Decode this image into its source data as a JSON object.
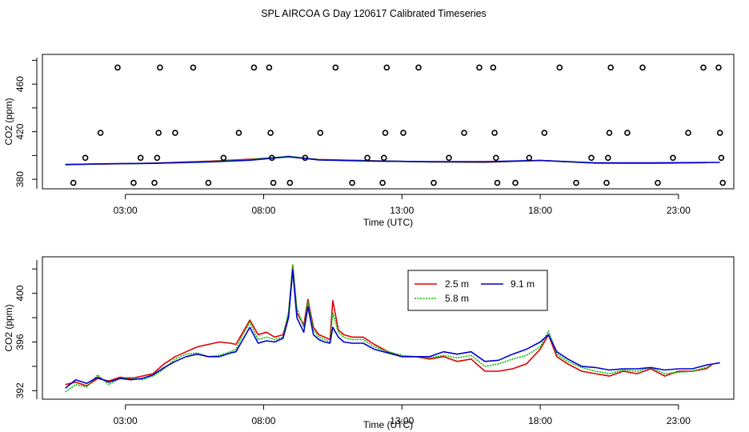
{
  "figure_title": "SPL AIRCOA G  Day 120617  Calibrated Timeseries",
  "chart_data": [
    {
      "type": "scatter",
      "xlabel": "Time (UTC)",
      "ylabel": "CO2 (ppm)",
      "xlim": [
        0.0,
        25.0
      ],
      "ylim": [
        372,
        485
      ],
      "xticks": [
        3,
        8,
        13,
        18,
        23
      ],
      "xtick_labels": [
        "03:00",
        "08:00",
        "13:00",
        "18:00",
        "23:00"
      ],
      "yticks": [
        380,
        420,
        460
      ],
      "ytick_labels": [
        "380",
        "420",
        "460"
      ],
      "calibration_points": {
        "marker": "circle",
        "points": [
          {
            "x": 1.12,
            "y": 377
          },
          {
            "x": 1.55,
            "y": 398
          },
          {
            "x": 2.1,
            "y": 419
          },
          {
            "x": 2.72,
            "y": 474
          },
          {
            "x": 3.3,
            "y": 377
          },
          {
            "x": 3.55,
            "y": 398
          },
          {
            "x": 4.05,
            "y": 377
          },
          {
            "x": 4.15,
            "y": 398
          },
          {
            "x": 4.2,
            "y": 419
          },
          {
            "x": 4.25,
            "y": 474
          },
          {
            "x": 4.8,
            "y": 419
          },
          {
            "x": 5.45,
            "y": 474
          },
          {
            "x": 6.0,
            "y": 377
          },
          {
            "x": 6.55,
            "y": 398
          },
          {
            "x": 7.1,
            "y": 419
          },
          {
            "x": 7.65,
            "y": 474
          },
          {
            "x": 8.2,
            "y": 474
          },
          {
            "x": 8.25,
            "y": 419
          },
          {
            "x": 8.3,
            "y": 398
          },
          {
            "x": 8.35,
            "y": 377
          },
          {
            "x": 8.95,
            "y": 377
          },
          {
            "x": 9.5,
            "y": 398
          },
          {
            "x": 10.05,
            "y": 419
          },
          {
            "x": 10.6,
            "y": 474
          },
          {
            "x": 11.2,
            "y": 377
          },
          {
            "x": 11.75,
            "y": 398
          },
          {
            "x": 12.3,
            "y": 377
          },
          {
            "x": 12.35,
            "y": 398
          },
          {
            "x": 12.4,
            "y": 419
          },
          {
            "x": 12.45,
            "y": 474
          },
          {
            "x": 13.05,
            "y": 419
          },
          {
            "x": 13.6,
            "y": 474
          },
          {
            "x": 14.15,
            "y": 377
          },
          {
            "x": 14.7,
            "y": 398
          },
          {
            "x": 15.25,
            "y": 419
          },
          {
            "x": 15.8,
            "y": 474
          },
          {
            "x": 16.3,
            "y": 474
          },
          {
            "x": 16.35,
            "y": 419
          },
          {
            "x": 16.4,
            "y": 398
          },
          {
            "x": 16.45,
            "y": 377
          },
          {
            "x": 17.1,
            "y": 377
          },
          {
            "x": 17.6,
            "y": 398
          },
          {
            "x": 18.15,
            "y": 419
          },
          {
            "x": 18.7,
            "y": 474
          },
          {
            "x": 19.3,
            "y": 377
          },
          {
            "x": 19.85,
            "y": 398
          },
          {
            "x": 20.4,
            "y": 377
          },
          {
            "x": 20.45,
            "y": 398
          },
          {
            "x": 20.5,
            "y": 419
          },
          {
            "x": 20.55,
            "y": 474
          },
          {
            "x": 21.15,
            "y": 419
          },
          {
            "x": 21.7,
            "y": 474
          },
          {
            "x": 22.25,
            "y": 377
          },
          {
            "x": 22.8,
            "y": 398
          },
          {
            "x": 23.35,
            "y": 419
          },
          {
            "x": 23.9,
            "y": 474
          },
          {
            "x": 24.45,
            "y": 474
          },
          {
            "x": 24.5,
            "y": 419
          },
          {
            "x": 24.55,
            "y": 398
          },
          {
            "x": 24.6,
            "y": 377
          }
        ]
      },
      "series": [
        {
          "name": "2.5 m",
          "color": "#dd0000",
          "x": [
            0.83,
            2,
            4,
            6,
            7.5,
            8.9,
            10,
            12,
            14,
            16,
            18,
            20,
            22,
            24
          ],
          "y": [
            392.4,
            392.8,
            393.6,
            395.2,
            396.8,
            399,
            396.6,
            395.6,
            394.6,
            394.2,
            395.8,
            393.6,
            393.4,
            394.0
          ]
        },
        {
          "name": "5.8 m",
          "color": "#00bb00",
          "x": [
            0.83,
            2,
            4,
            6,
            7.5,
            8.9,
            10,
            12,
            14,
            16,
            18,
            20,
            22,
            24
          ],
          "y": [
            392.2,
            392.9,
            393.4,
            394.9,
            396.4,
            399.3,
            396.4,
            395.4,
            394.7,
            394.6,
            395.9,
            393.6,
            393.4,
            394.0
          ]
        },
        {
          "name": "9.1 m",
          "color": "#0000cc",
          "x": [
            0.83,
            2,
            4,
            6,
            7.5,
            8.9,
            10,
            12,
            14,
            16,
            18,
            20,
            22,
            24.5
          ],
          "y": [
            392.4,
            392.9,
            393.4,
            394.6,
            396.0,
            399.0,
            396.3,
            395.3,
            394.8,
            394.8,
            395.9,
            393.8,
            393.8,
            394.2
          ]
        }
      ]
    },
    {
      "type": "line",
      "xlabel": "Time (UTC)",
      "ylabel": "CO2 (ppm)",
      "xlim": [
        0.0,
        25.0
      ],
      "ylim": [
        391.3,
        403.0
      ],
      "xticks": [
        3,
        8,
        13,
        18,
        23
      ],
      "xtick_labels": [
        "03:00",
        "08:00",
        "13:00",
        "18:00",
        "23:00"
      ],
      "yticks": [
        392,
        396,
        400
      ],
      "ytick_labels": [
        "392",
        "396",
        "400"
      ],
      "legend": {
        "position": "top-center",
        "entries": [
          "2.5 m",
          "5.8 m",
          "9.1 m"
        ]
      },
      "series": [
        {
          "name": "2.5 m",
          "color": "#dd0000",
          "dash": "solid",
          "x": [
            0.83,
            1.2,
            1.6,
            2.0,
            2.4,
            2.8,
            3.2,
            3.6,
            4.0,
            4.4,
            4.8,
            5.2,
            5.6,
            6.0,
            6.4,
            6.8,
            7.0,
            7.2,
            7.5,
            7.8,
            8.1,
            8.4,
            8.7,
            8.9,
            9.05,
            9.2,
            9.45,
            9.6,
            9.8,
            10.0,
            10.2,
            10.4,
            10.5,
            10.7,
            10.9,
            11.2,
            11.6,
            12.0,
            12.5,
            13.0,
            13.5,
            14.0,
            14.5,
            15.0,
            15.5,
            16.0,
            16.5,
            17.0,
            17.5,
            18.0,
            18.3,
            18.6,
            19.0,
            19.5,
            20.0,
            20.5,
            21.0,
            21.5,
            22.0,
            22.5,
            23.0,
            23.5,
            24.0,
            24.2
          ],
          "y": [
            392.5,
            392.7,
            392.4,
            393.0,
            392.8,
            393.1,
            393.0,
            393.2,
            393.4,
            394.2,
            394.8,
            395.2,
            395.6,
            395.8,
            396.0,
            395.9,
            395.8,
            396.6,
            397.8,
            396.6,
            396.8,
            396.4,
            396.6,
            398.2,
            402.2,
            398.4,
            397.4,
            399.5,
            397.2,
            396.6,
            396.4,
            396.2,
            399.4,
            397.0,
            396.6,
            396.4,
            396.4,
            395.8,
            395.2,
            394.8,
            394.8,
            394.6,
            394.8,
            394.4,
            394.6,
            393.6,
            393.6,
            393.8,
            394.2,
            395.4,
            396.6,
            394.8,
            394.2,
            393.6,
            393.4,
            393.2,
            393.6,
            393.4,
            393.8,
            393.2,
            393.6,
            393.6,
            393.8,
            394.1
          ]
        },
        {
          "name": "5.8 m",
          "color": "#00bb00",
          "dash": "dotted",
          "x": [
            0.83,
            1.2,
            1.6,
            2.0,
            2.4,
            2.8,
            3.2,
            3.6,
            4.0,
            4.4,
            4.8,
            5.2,
            5.6,
            6.0,
            6.4,
            6.8,
            7.0,
            7.2,
            7.5,
            7.8,
            8.1,
            8.4,
            8.7,
            8.9,
            9.05,
            9.2,
            9.45,
            9.6,
            9.8,
            10.0,
            10.2,
            10.4,
            10.5,
            10.7,
            10.9,
            11.2,
            11.6,
            12.0,
            12.5,
            13.0,
            13.5,
            14.0,
            14.5,
            15.0,
            15.5,
            16.0,
            16.5,
            17.0,
            17.5,
            18.0,
            18.3,
            18.6,
            19.0,
            19.5,
            20.0,
            20.5,
            21.0,
            21.5,
            22.0,
            22.5,
            23.0,
            23.5,
            24.0,
            24.2
          ],
          "y": [
            391.9,
            392.5,
            392.3,
            393.3,
            392.5,
            393.0,
            393.1,
            392.9,
            393.2,
            393.8,
            394.6,
            395.0,
            395.1,
            394.8,
            394.9,
            395.2,
            395.4,
            396.4,
            397.6,
            396.2,
            396.4,
            396.2,
            396.4,
            398.5,
            402.4,
            398.8,
            397.2,
            399.3,
            397.0,
            396.4,
            396.2,
            396.0,
            398.4,
            396.8,
            396.4,
            396.2,
            396.2,
            395.6,
            395.2,
            394.9,
            394.8,
            394.7,
            394.9,
            394.7,
            394.9,
            394.0,
            394.2,
            394.6,
            394.9,
            395.6,
            396.9,
            395.0,
            394.4,
            393.9,
            393.6,
            393.4,
            393.7,
            393.6,
            393.9,
            393.4,
            393.5,
            393.6,
            393.9,
            394.1
          ]
        },
        {
          "name": "9.1 m",
          "color": "#0000cc",
          "dash": "solid",
          "x": [
            0.83,
            1.2,
            1.6,
            2.0,
            2.4,
            2.8,
            3.2,
            3.6,
            4.0,
            4.4,
            4.8,
            5.2,
            5.6,
            6.0,
            6.4,
            6.8,
            7.0,
            7.2,
            7.5,
            7.8,
            8.1,
            8.4,
            8.7,
            8.9,
            9.05,
            9.2,
            9.45,
            9.6,
            9.8,
            10.0,
            10.2,
            10.4,
            10.5,
            10.7,
            10.9,
            11.2,
            11.6,
            12.0,
            12.5,
            13.0,
            13.5,
            14.0,
            14.5,
            15.0,
            15.5,
            16.0,
            16.5,
            17.0,
            17.5,
            18.0,
            18.3,
            18.6,
            19.0,
            19.5,
            20.0,
            20.5,
            21.0,
            21.5,
            22.0,
            22.5,
            23.0,
            23.5,
            24.0,
            24.5
          ],
          "y": [
            392.2,
            392.9,
            392.6,
            393.1,
            392.7,
            393.0,
            392.9,
            393.0,
            393.3,
            393.9,
            394.4,
            394.8,
            395.0,
            394.8,
            394.8,
            395.1,
            395.2,
            396.0,
            397.2,
            395.9,
            396.1,
            396.0,
            396.3,
            398.0,
            401.9,
            398.0,
            396.8,
            398.9,
            396.6,
            396.2,
            396.0,
            395.9,
            397.2,
            396.4,
            396.0,
            395.9,
            395.9,
            395.4,
            395.1,
            394.8,
            394.8,
            394.8,
            395.2,
            395.0,
            395.2,
            394.4,
            394.5,
            395.0,
            395.4,
            396.0,
            396.6,
            395.2,
            394.6,
            394.0,
            393.9,
            393.7,
            393.8,
            393.8,
            393.9,
            393.7,
            393.8,
            393.8,
            394.1,
            394.3
          ]
        }
      ]
    }
  ]
}
